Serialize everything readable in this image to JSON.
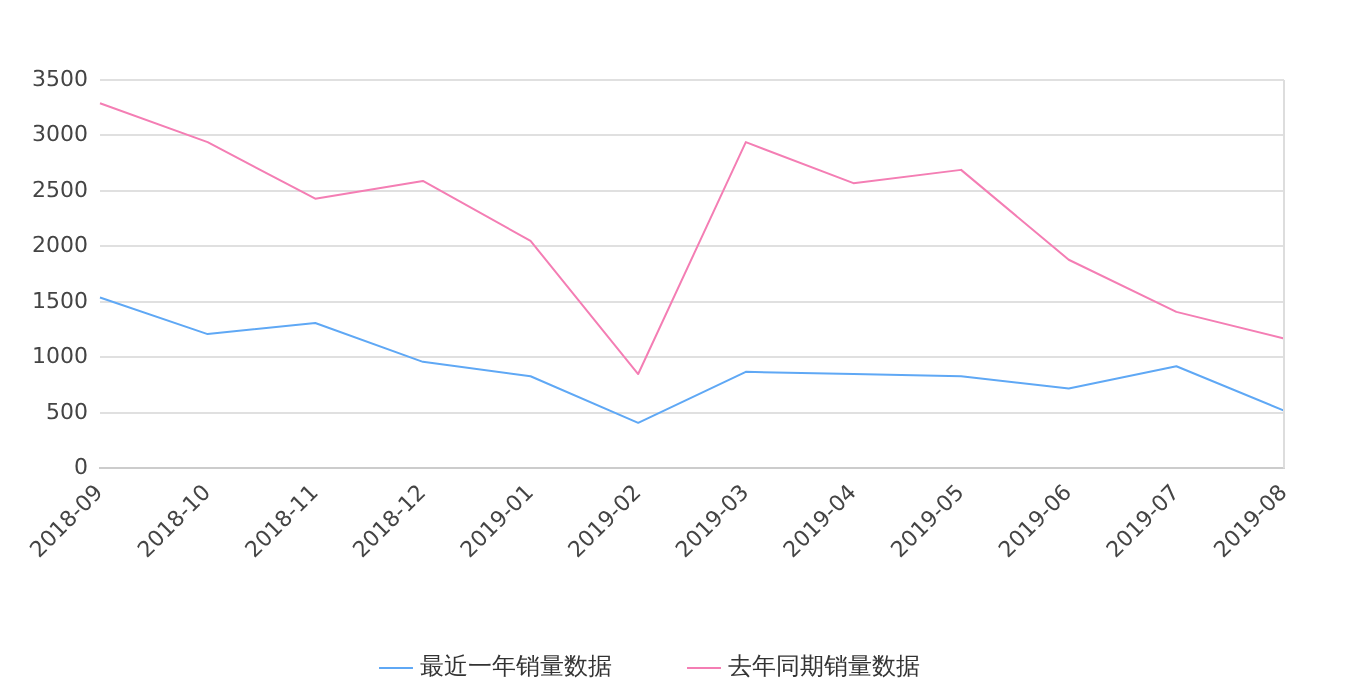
{
  "chart_data": {
    "type": "line",
    "categories": [
      "2018-09",
      "2018-10",
      "2018-11",
      "2018-12",
      "2019-01",
      "2019-02",
      "2019-03",
      "2019-04",
      "2019-05",
      "2019-06",
      "2019-07",
      "2019-08"
    ],
    "series": [
      {
        "name": "最近一年销量数据",
        "color": "#5fa8f5",
        "values": [
          1540,
          1210,
          1310,
          960,
          830,
          410,
          870,
          850,
          830,
          720,
          920,
          520
        ]
      },
      {
        "name": "去年同期销量数据",
        "color": "#f47eb4",
        "values": [
          3290,
          2940,
          2430,
          2590,
          2050,
          850,
          2940,
          2570,
          2690,
          1880,
          1410,
          1170
        ]
      }
    ],
    "ylim": [
      0,
      3500
    ],
    "yticks": [
      0,
      500,
      1000,
      1500,
      2000,
      2500,
      3000,
      3500
    ],
    "grid": "y",
    "legend": "bottom",
    "marker": "none",
    "line_style": "solid"
  }
}
